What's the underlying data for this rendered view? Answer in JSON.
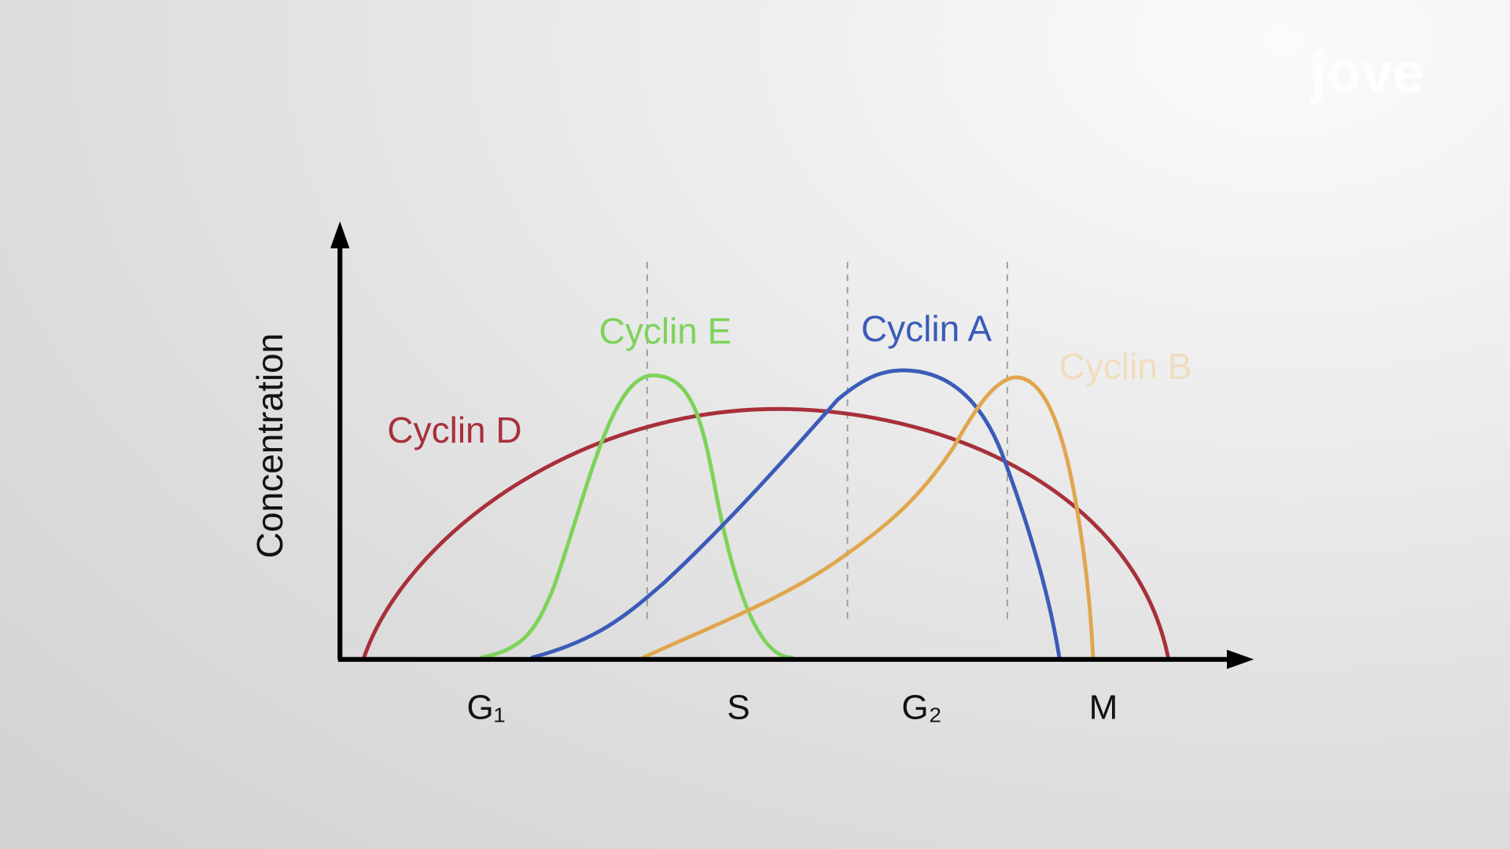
{
  "y_axis_label": "Concentration",
  "phases": [
    "G₁",
    "S",
    "G₂",
    "M"
  ],
  "curves": [
    {
      "label": "Cyclin D"
    },
    {
      "label": "Cyclin E"
    },
    {
      "label": "Cyclin A"
    },
    {
      "label": "Cyclin B"
    }
  ],
  "logo": "jove"
}
